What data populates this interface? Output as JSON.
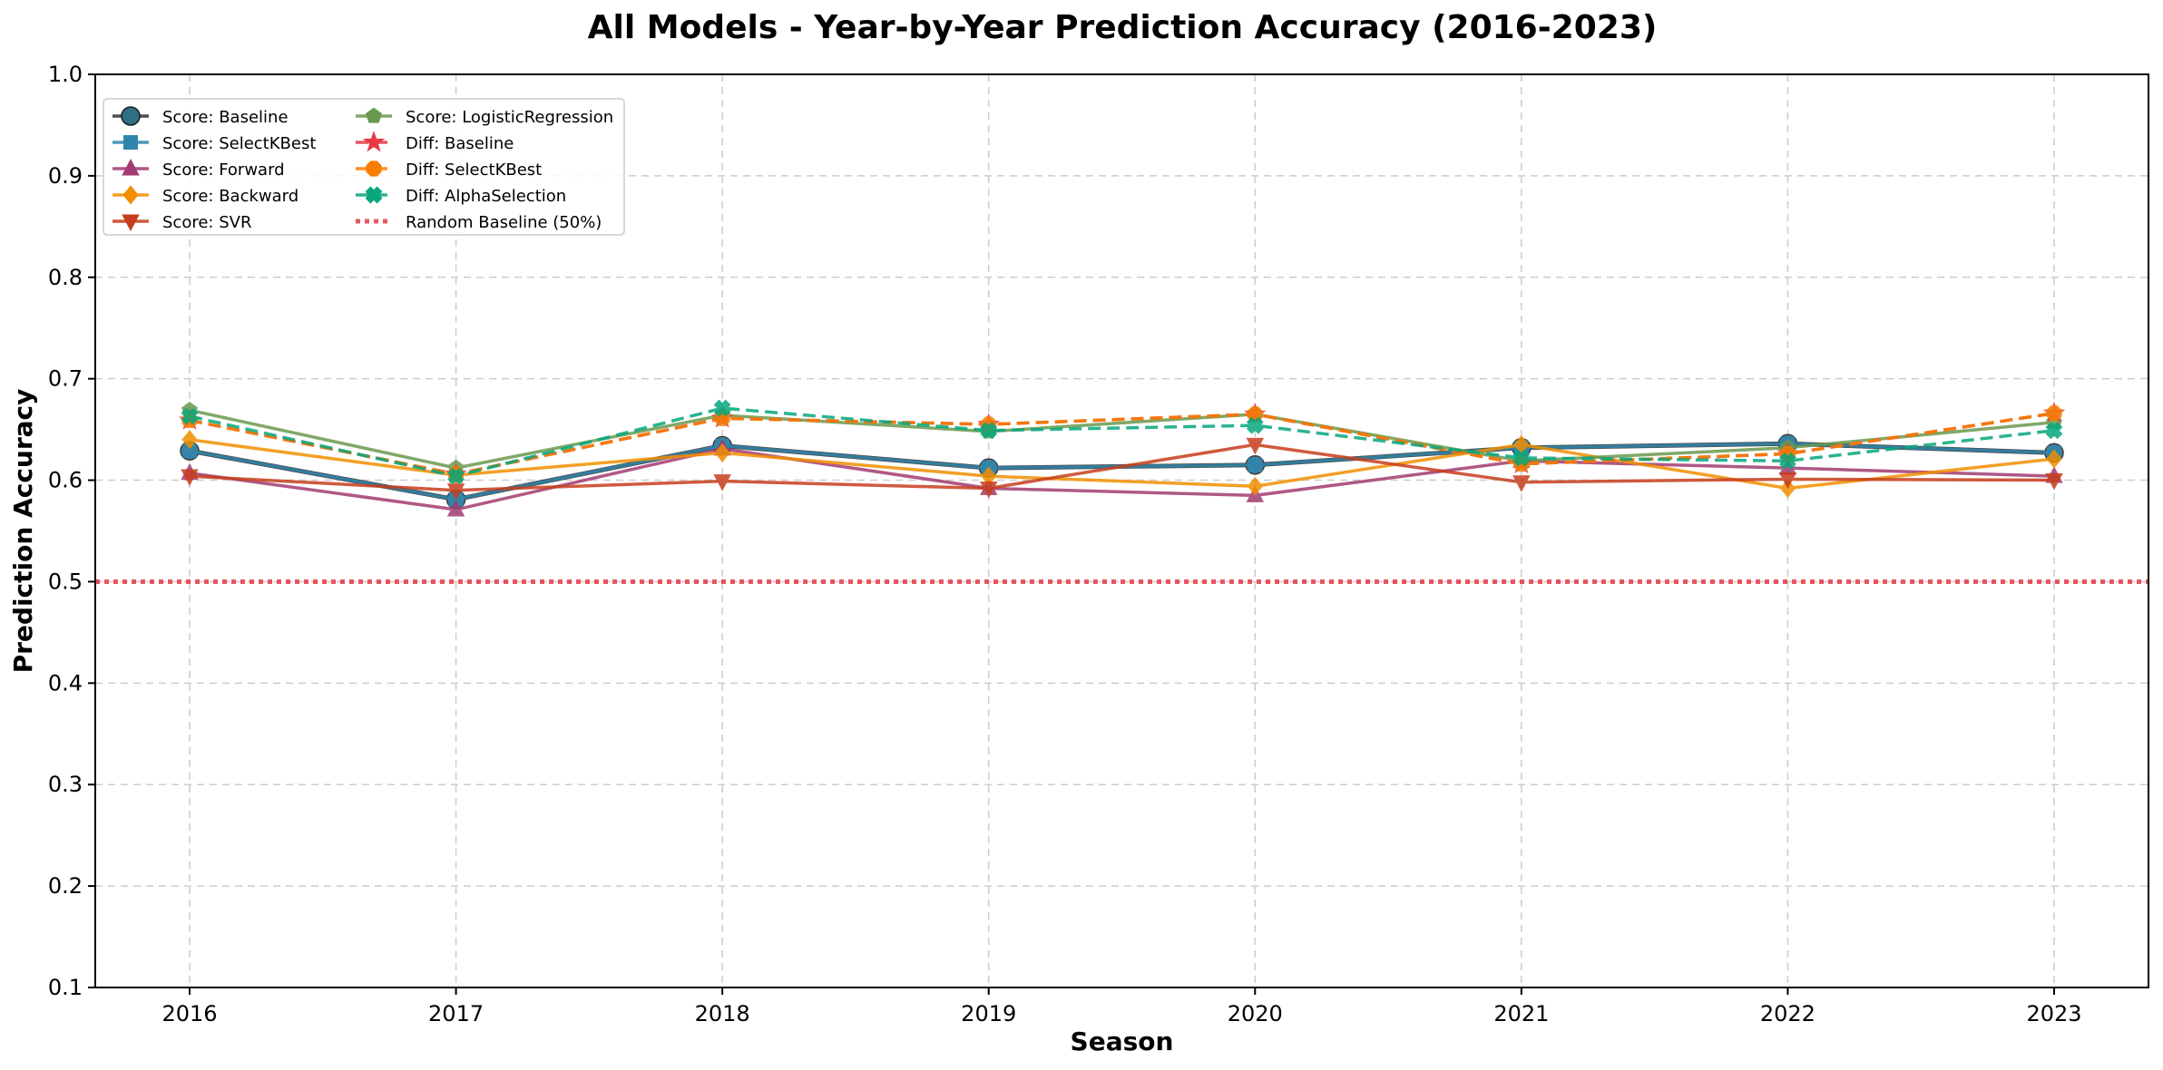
{
  "chart_data": {
    "type": "line",
    "title": "All Models - Year-by-Year Prediction Accuracy (2016-2023)",
    "xlabel": "Season",
    "ylabel": "Prediction Accuracy",
    "x": [
      2016,
      2017,
      2018,
      2019,
      2020,
      2021,
      2022,
      2023
    ],
    "ylim": [
      0.1,
      1.0
    ],
    "yticks": [
      0.1,
      0.2,
      0.3,
      0.4,
      0.5,
      0.6,
      0.7,
      0.8,
      0.9,
      1.0
    ],
    "grid": true,
    "legend_position": "upper-left",
    "series": [
      {
        "name": "Score: Baseline",
        "values": [
          0.629,
          0.581,
          0.634,
          0.612,
          0.615,
          0.632,
          0.636,
          0.627
        ],
        "color": "#2e2e2e",
        "fill": "#2e6e87",
        "marker": "circle",
        "dash": "solid"
      },
      {
        "name": "Score: SelectKBest",
        "values": [
          0.629,
          0.581,
          0.634,
          0.612,
          0.615,
          0.632,
          0.636,
          0.627
        ],
        "color": "#2e86ab",
        "marker": "square",
        "dash": "solid"
      },
      {
        "name": "Score: Forward",
        "values": [
          0.607,
          0.571,
          0.631,
          0.592,
          0.585,
          0.619,
          0.612,
          0.604
        ],
        "color": "#a23b72",
        "marker": "triangle-up",
        "dash": "solid"
      },
      {
        "name": "Score: Backward",
        "values": [
          0.64,
          0.605,
          0.627,
          0.604,
          0.594,
          0.635,
          0.592,
          0.621
        ],
        "color": "#f18f01",
        "marker": "diamond",
        "dash": "solid"
      },
      {
        "name": "Score: SVR",
        "values": [
          0.604,
          0.59,
          0.599,
          0.592,
          0.635,
          0.598,
          0.601,
          0.6
        ],
        "color": "#c73e1d",
        "marker": "triangle-down",
        "dash": "solid"
      },
      {
        "name": "Score: LogisticRegression",
        "values": [
          0.669,
          0.612,
          0.664,
          0.648,
          0.665,
          0.619,
          0.632,
          0.657
        ],
        "color": "#6a994e",
        "marker": "pentagon",
        "dash": "solid"
      },
      {
        "name": "Diff: Baseline",
        "values": [
          0.659,
          0.606,
          0.661,
          0.655,
          0.665,
          0.616,
          0.626,
          0.666
        ],
        "color": "#e63946",
        "marker": "star",
        "dash": "dashed"
      },
      {
        "name": "Diff: SelectKBest",
        "values": [
          0.659,
          0.606,
          0.661,
          0.655,
          0.665,
          0.616,
          0.626,
          0.666
        ],
        "color": "#f77f00",
        "marker": "octagon",
        "dash": "dashed"
      },
      {
        "name": "Diff: AlphaSelection",
        "values": [
          0.663,
          0.604,
          0.671,
          0.649,
          0.654,
          0.622,
          0.619,
          0.649
        ],
        "color": "#06a77d",
        "marker": "x-filled",
        "dash": "dashed"
      }
    ],
    "reference_line": {
      "name": "Random Baseline (50%)",
      "value": 0.5,
      "color": "#e63946",
      "dash": "dotted"
    }
  }
}
